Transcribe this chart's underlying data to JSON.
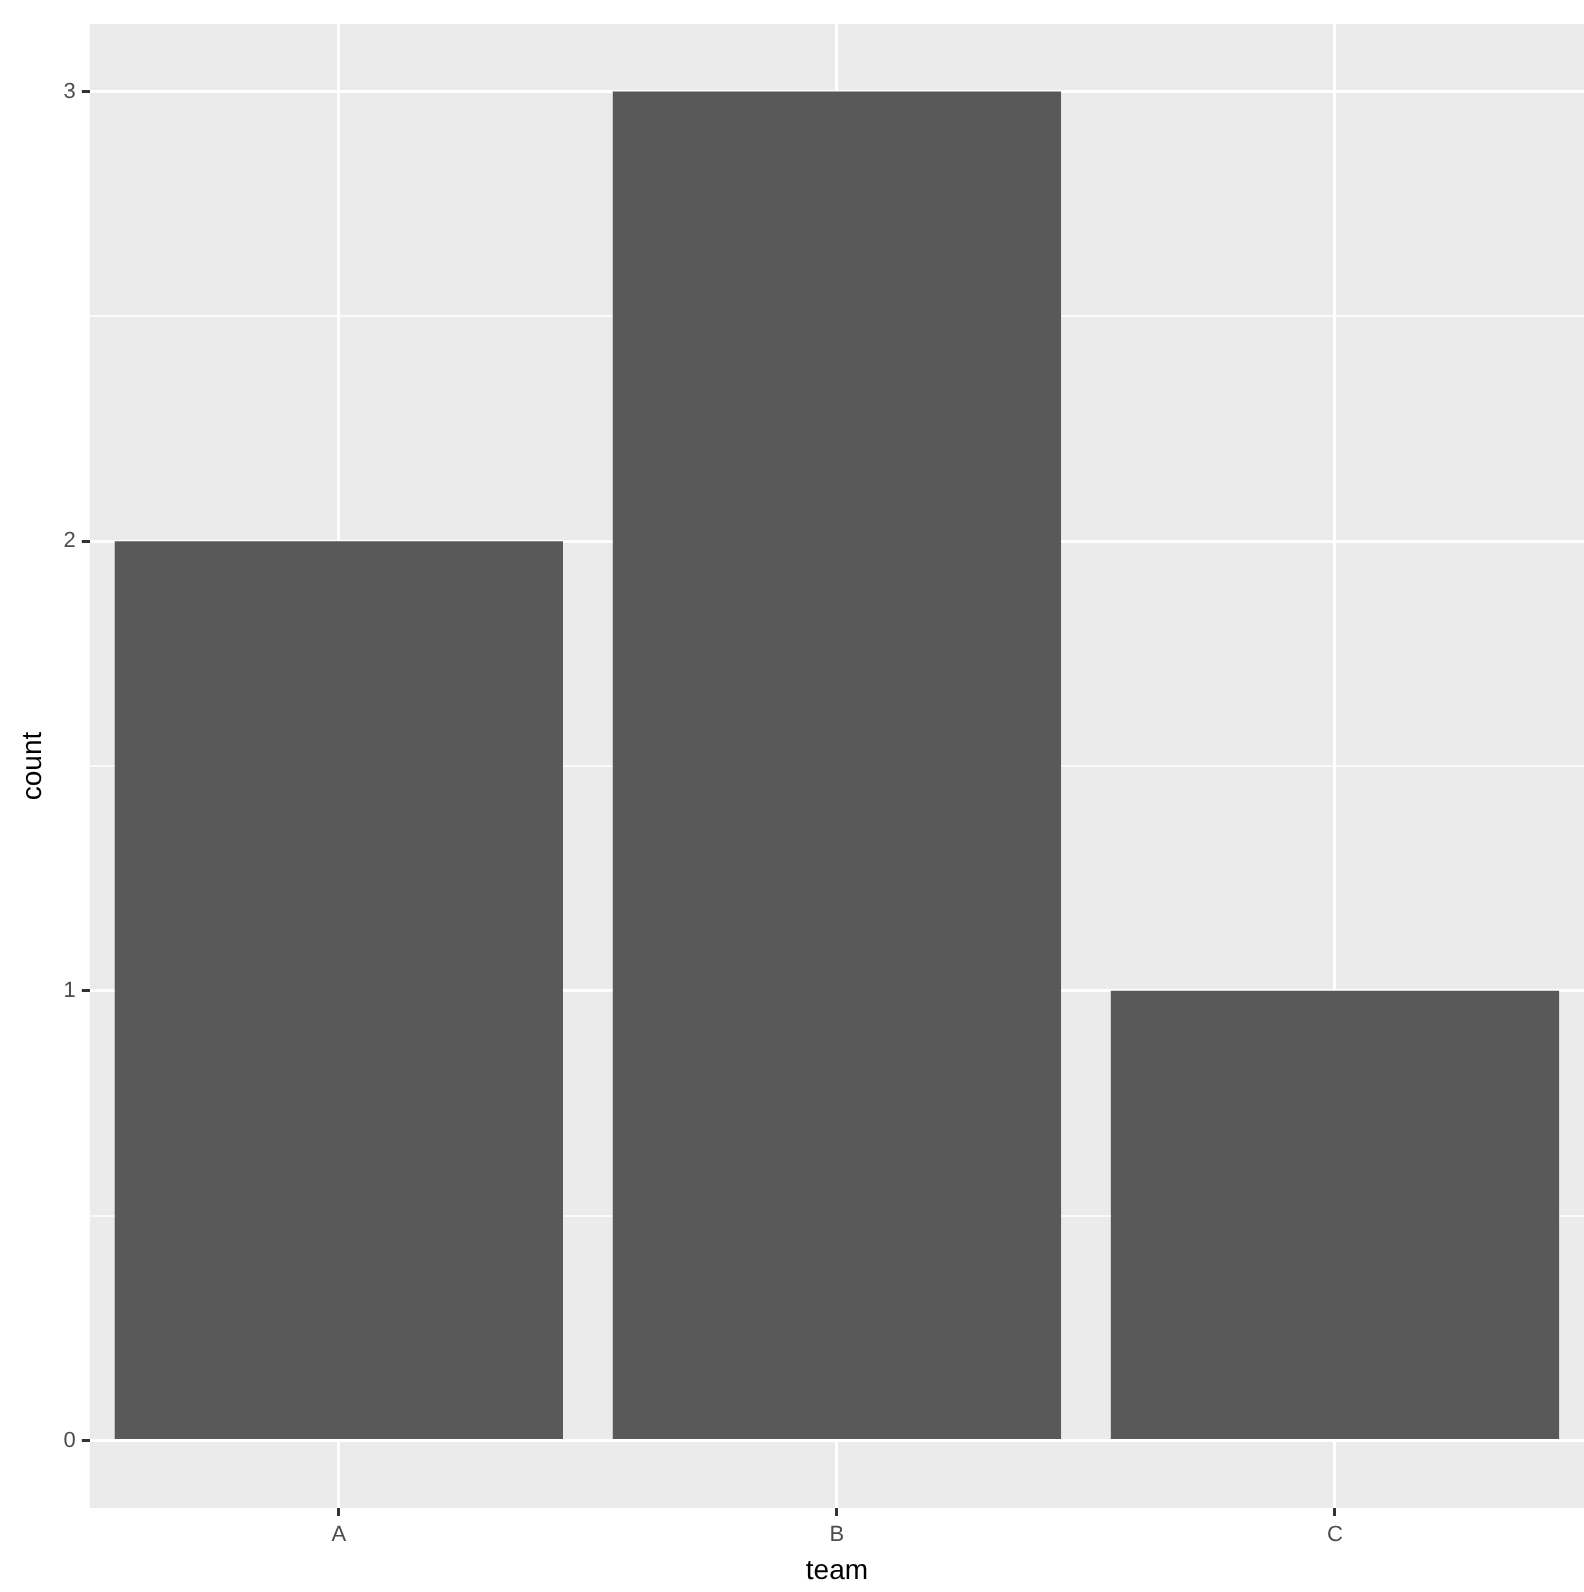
{
  "chart_data": {
    "type": "bar",
    "xlabel": "team",
    "ylabel": "count",
    "categories": [
      "A",
      "B",
      "C"
    ],
    "values": [
      2,
      3,
      1
    ],
    "color": "#595959",
    "ylim": [
      -0.15,
      3.15
    ],
    "yticks": [
      0,
      {
        "value": 0.5,
        "label": null
      },
      1,
      {
        "value": 1.5,
        "label": null
      },
      2,
      {
        "value": 2.5,
        "label": null
      },
      3
    ],
    "grid": true,
    "legend": false
  }
}
